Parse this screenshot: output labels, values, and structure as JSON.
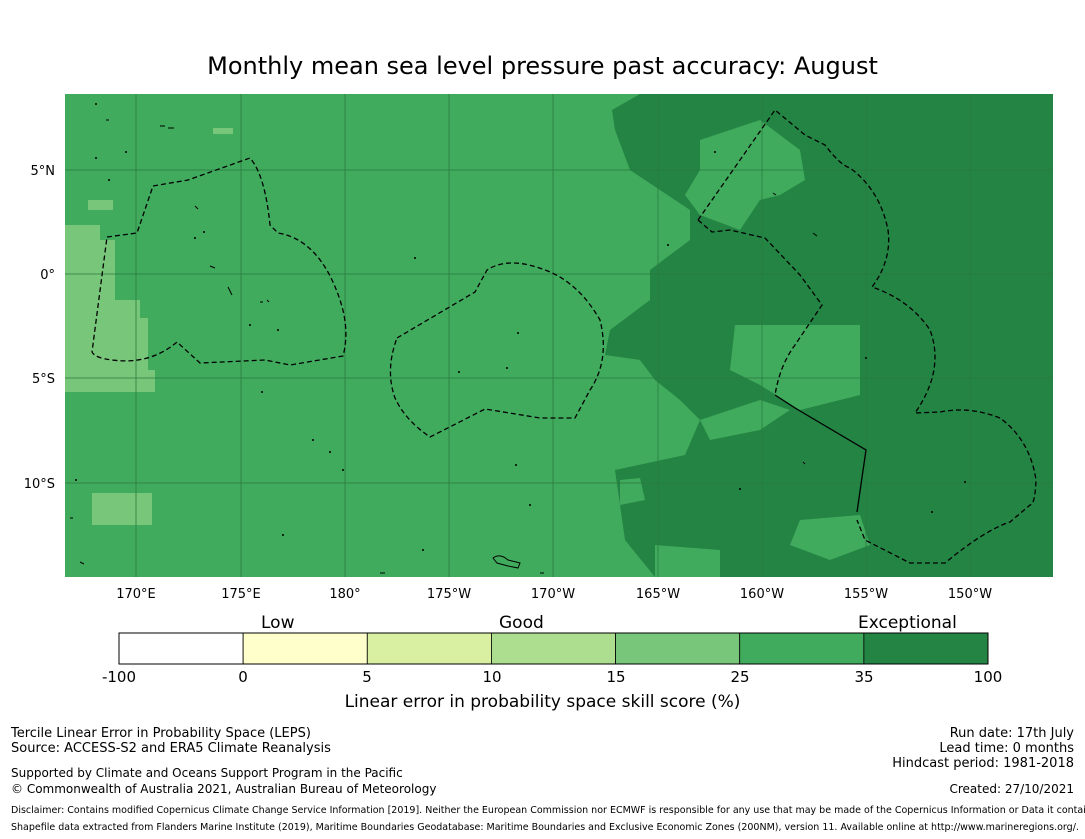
{
  "title": "Monthly mean sea level pressure past accuracy: August",
  "map": {
    "lat_labels": [
      "5°N",
      "0°",
      "5°S",
      "10°S"
    ],
    "lon_labels": [
      "170°E",
      "175°E",
      "180°",
      "175°W",
      "170°W",
      "165°W",
      "160°W",
      "155°W",
      "150°W"
    ],
    "colors": {
      "ocean_base": "#41ab5d",
      "exceptional": "#238443",
      "good_high": "#78c679",
      "grid": "#2a7a40",
      "boundary": "#000000"
    }
  },
  "legend": {
    "categories": [
      "Low",
      "Good",
      "Exceptional"
    ],
    "ticks": [
      "-100",
      "0",
      "5",
      "10",
      "15",
      "25",
      "35",
      "100"
    ],
    "colors": [
      "#ffffff",
      "#ffffcc",
      "#d9f0a3",
      "#addd8e",
      "#78c679",
      "#41ab5d",
      "#238443"
    ],
    "label": "Linear error in probability space skill score (%)"
  },
  "footer": {
    "left1": "Tercile Linear Error in Probability Space (LEPS)",
    "left2": "Source: ACCESS-S2 and ERA5 Climate Reanalysis",
    "left3": "Supported by Climate and Oceans Support Program in the Pacific",
    "left4": "© Commonwealth of Australia 2021, Australian Bureau of Meteorology",
    "right1": "Run date: 17th July",
    "right2": "Lead time: 0 months",
    "right3": "Hindcast period: 1981-2018",
    "right4": "Created: 27/10/2021",
    "disclaimer": "Disclaimer: Contains modified Copernicus Climate Change Service Information [2019]. Neither the European Commission nor ECMWF is responsible for any use that may be made of the Copernicus Information or Data it contains.",
    "shapefile": "Shapefile data extracted from Flanders Marine Institute (2019), Maritime Boundaries Geodatabase: Maritime Boundaries and Exclusive Economic Zones (200NM), version 11. Available online at http://www.marineregions.org/."
  }
}
